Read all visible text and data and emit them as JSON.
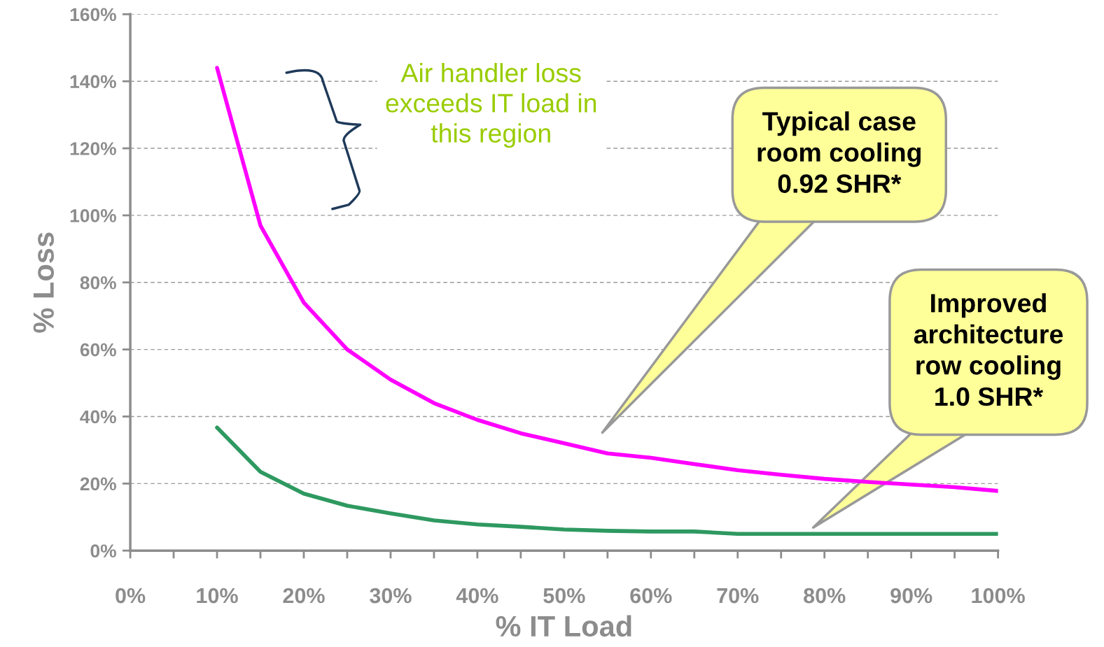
{
  "chart_data": {
    "type": "line",
    "xlabel": "% IT Load",
    "ylabel": "% Loss",
    "x": [
      10,
      15,
      20,
      25,
      30,
      35,
      40,
      45,
      50,
      55,
      60,
      65,
      70,
      75,
      80,
      85,
      90,
      95,
      100
    ],
    "series": [
      {
        "color": "#ff00ff",
        "values": [
          144,
          97,
          74,
          60,
          51,
          44,
          39,
          35,
          32,
          29,
          27.7,
          25.8,
          24,
          22.6,
          21.4,
          20.5,
          19.7,
          18.9,
          17.8
        ]
      },
      {
        "color": "#2e9960",
        "values": [
          36.7,
          23.5,
          17,
          13.4,
          11.1,
          9,
          7.8,
          7.1,
          6.3,
          5.9,
          5.7,
          5.7,
          5,
          5,
          5,
          5,
          5,
          5,
          5
        ]
      }
    ],
    "xlim": [
      0,
      100
    ],
    "ylim": [
      0,
      160
    ],
    "xticks": [
      {
        "value": 0,
        "label": "0%"
      },
      {
        "value": 5,
        "label": null
      },
      {
        "value": 10,
        "label": "10%"
      },
      {
        "value": 15,
        "label": null
      },
      {
        "value": 20,
        "label": "20%"
      },
      {
        "value": 25,
        "label": null
      },
      {
        "value": 30,
        "label": "30%"
      },
      {
        "value": 35,
        "label": null
      },
      {
        "value": 40,
        "label": "40%"
      },
      {
        "value": 45,
        "label": null
      },
      {
        "value": 50,
        "label": "50%"
      },
      {
        "value": 55,
        "label": null
      },
      {
        "value": 60,
        "label": "60%"
      },
      {
        "value": 65,
        "label": null
      },
      {
        "value": 70,
        "label": "70%"
      },
      {
        "value": 75,
        "label": null
      },
      {
        "value": 80,
        "label": "80%"
      },
      {
        "value": 85,
        "label": null
      },
      {
        "value": 90,
        "label": "90%"
      },
      {
        "value": 95,
        "label": null
      },
      {
        "value": 100,
        "label": "100%"
      }
    ],
    "yticks": [
      {
        "value": 0,
        "label": "0%"
      },
      {
        "value": 20,
        "label": "20%"
      },
      {
        "value": 40,
        "label": "40%"
      },
      {
        "value": 60,
        "label": "60%"
      },
      {
        "value": 80,
        "label": "80%"
      },
      {
        "value": 100,
        "label": "100%"
      },
      {
        "value": 120,
        "label": "120%"
      },
      {
        "value": 140,
        "label": "140%"
      },
      {
        "value": 160,
        "label": "160%"
      }
    ],
    "grid": "y",
    "marker": "none",
    "line_style": "solid",
    "annotations": [
      "Air handler loss\nexceeds IT load in\nthis region",
      "Typical case\nroom cooling\n0.92 SHR*",
      "Improved\narchitecture\nrow cooling\n1.0 SHR*"
    ]
  }
}
